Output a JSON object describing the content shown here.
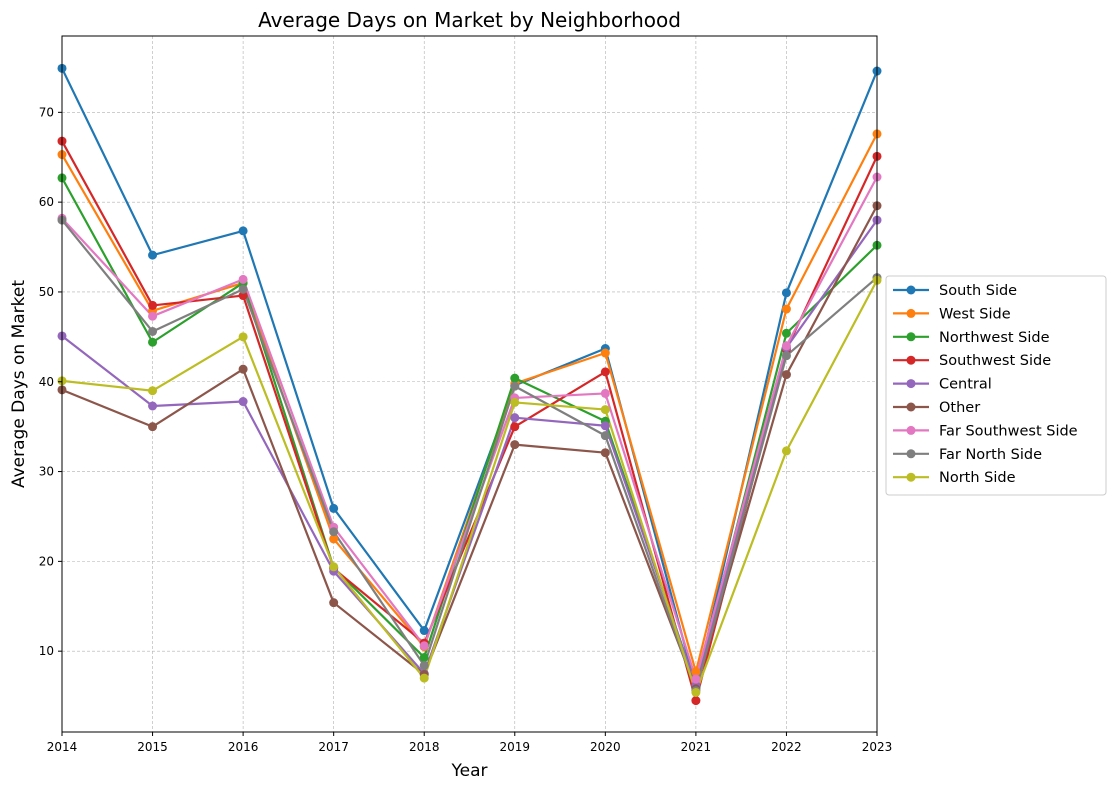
{
  "chart_data": {
    "type": "line",
    "title": "Average Days on Market by Neighborhood",
    "xlabel": "Year",
    "ylabel": "Average Days on Market",
    "x": [
      2014,
      2015,
      2016,
      2017,
      2018,
      2019,
      2020,
      2021,
      2022,
      2023
    ],
    "xlim": [
      2014,
      2023
    ],
    "ylim": [
      1,
      78.5
    ],
    "yticks": [
      10,
      20,
      30,
      40,
      50,
      60,
      70
    ],
    "grid": true,
    "legend_position": "right",
    "series": [
      {
        "name": "South Side",
        "color": "#1f77b4",
        "values": [
          74.9,
          54.1,
          56.8,
          25.9,
          12.3,
          39.6,
          43.7,
          6.0,
          49.9,
          74.6
        ]
      },
      {
        "name": "West Side",
        "color": "#ff7f0e",
        "values": [
          65.3,
          47.9,
          51.0,
          22.5,
          10.5,
          39.8,
          43.2,
          7.7,
          48.1,
          67.6
        ]
      },
      {
        "name": "Northwest Side",
        "color": "#2ca02c",
        "values": [
          62.7,
          44.4,
          51.0,
          19.3,
          9.3,
          40.4,
          35.6,
          6.1,
          45.4,
          55.2
        ]
      },
      {
        "name": "Southwest Side",
        "color": "#d62728",
        "values": [
          66.8,
          48.5,
          49.6,
          19.2,
          10.9,
          35.0,
          41.1,
          4.5,
          43.6,
          65.1
        ]
      },
      {
        "name": "Central",
        "color": "#9467bd",
        "values": [
          45.1,
          37.3,
          37.8,
          18.9,
          7.5,
          36.0,
          35.1,
          6.2,
          43.8,
          58.0
        ]
      },
      {
        "name": "Other",
        "color": "#8c564b",
        "values": [
          39.1,
          35.0,
          41.4,
          15.4,
          7.4,
          33.0,
          32.1,
          5.8,
          40.8,
          59.6
        ]
      },
      {
        "name": "Far Southwest Side",
        "color": "#e377c2",
        "values": [
          58.2,
          47.3,
          51.4,
          23.8,
          10.6,
          38.2,
          38.7,
          6.9,
          44.0,
          62.8
        ]
      },
      {
        "name": "Far North Side",
        "color": "#7f7f7f",
        "values": [
          58.0,
          45.6,
          50.3,
          23.3,
          8.4,
          39.5,
          34.0,
          5.6,
          42.9,
          51.6
        ]
      },
      {
        "name": "North Side",
        "color": "#bcbd22",
        "values": [
          40.1,
          39.0,
          45.0,
          19.4,
          7.0,
          37.7,
          36.9,
          5.4,
          32.3,
          51.3
        ]
      }
    ]
  }
}
